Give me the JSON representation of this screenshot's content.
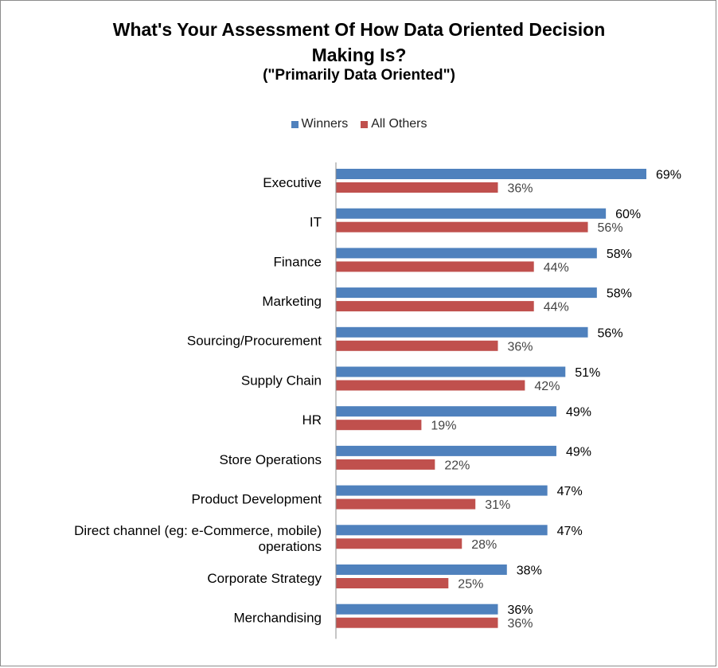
{
  "chart_data": {
    "type": "bar",
    "orientation": "horizontal",
    "title": "What's Your Assessment Of How Data Oriented Decision Making Is?",
    "title_lines": [
      "What's Your Assessment Of How Data Oriented Decision",
      "Making Is?"
    ],
    "subtitle": "(\"Primarily Data Oriented\")",
    "legend_placement": "top-center",
    "grid": false,
    "xlim": [
      0,
      70
    ],
    "categories": [
      "Executive",
      "IT",
      "Finance",
      "Marketing",
      "Sourcing/Procurement",
      "Supply Chain",
      "HR",
      "Store Operations",
      "Product Development",
      "Direct channel (eg: e-Commerce, mobile) operations",
      "Corporate Strategy",
      "Merchandising"
    ],
    "category_lines": [
      [
        "Executive"
      ],
      [
        "IT"
      ],
      [
        "Finance"
      ],
      [
        "Marketing"
      ],
      [
        "Sourcing/Procurement"
      ],
      [
        "Supply Chain"
      ],
      [
        "HR"
      ],
      [
        "Store Operations"
      ],
      [
        "Product Development"
      ],
      [
        "Direct channel (eg: e-Commerce, mobile)",
        "operations"
      ],
      [
        "Corporate Strategy"
      ],
      [
        "Merchandising"
      ]
    ],
    "series": [
      {
        "name": "Winners",
        "color": "#4f81bd",
        "values": [
          69,
          60,
          58,
          58,
          56,
          51,
          49,
          49,
          47,
          47,
          38,
          36
        ],
        "labels": [
          "69%",
          "60%",
          "58%",
          "58%",
          "56%",
          "51%",
          "49%",
          "49%",
          "47%",
          "47%",
          "38%",
          "36%"
        ]
      },
      {
        "name": "All Others",
        "color": "#c0504d",
        "values": [
          36,
          56,
          44,
          44,
          36,
          42,
          19,
          22,
          31,
          28,
          25,
          36
        ],
        "labels": [
          "36%",
          "56%",
          "44%",
          "44%",
          "36%",
          "42%",
          "19%",
          "22%",
          "31%",
          "28%",
          "25%",
          "36%"
        ]
      }
    ]
  }
}
